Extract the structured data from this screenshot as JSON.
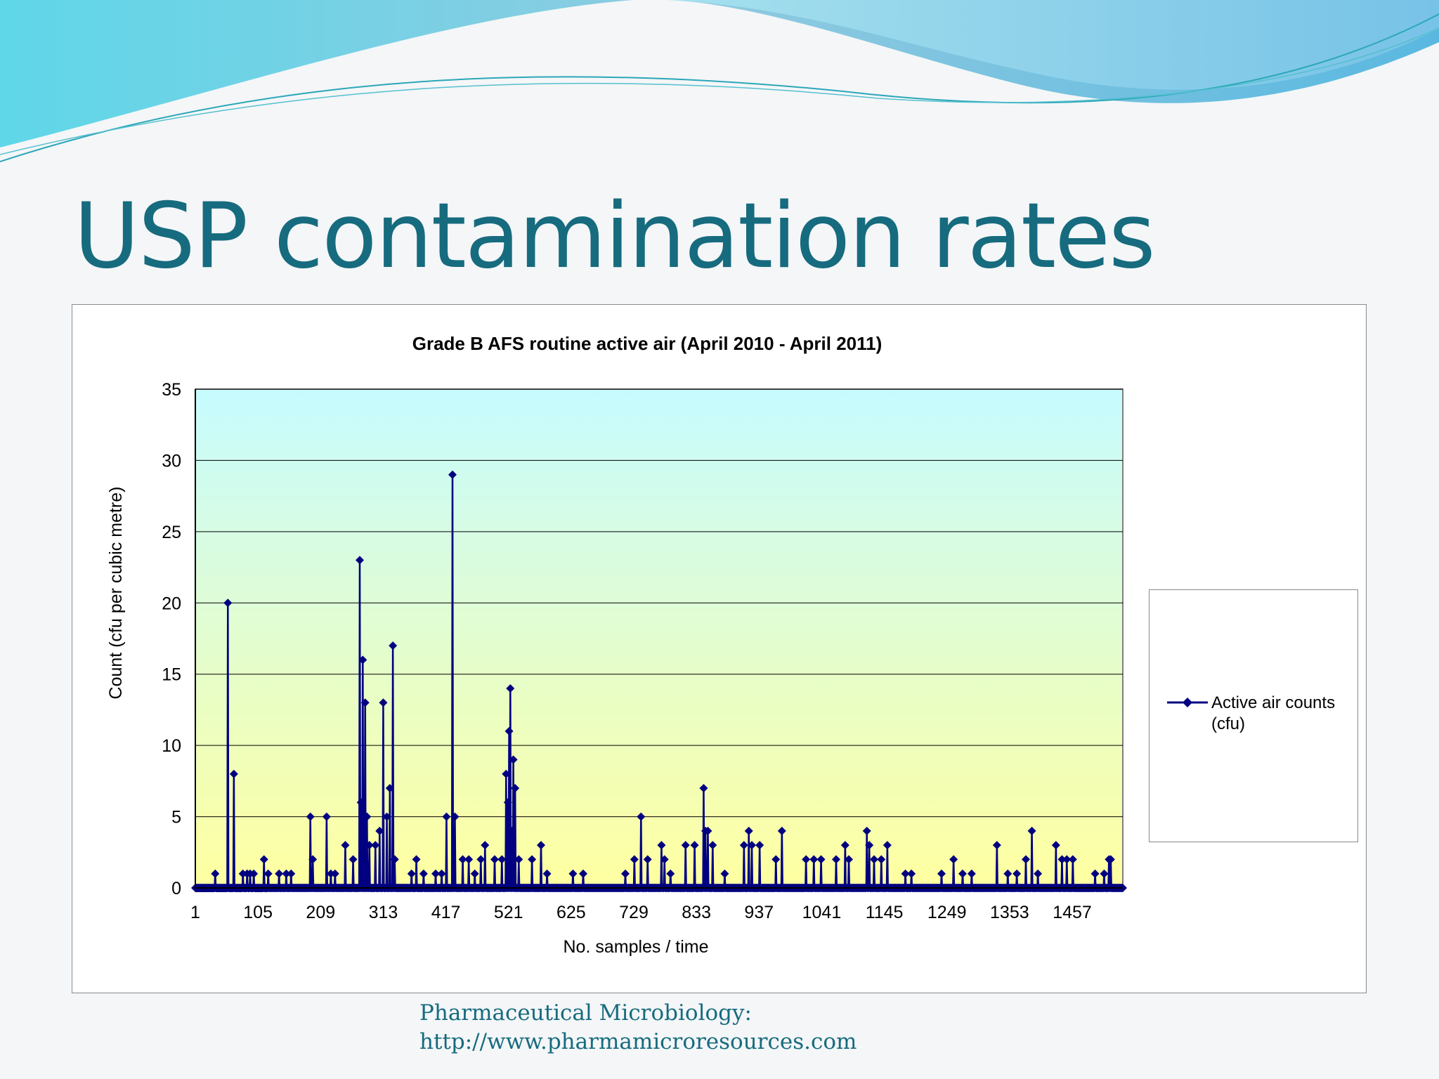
{
  "slide": {
    "title": "USP contamination rates",
    "footer_line1": "Pharmaceutical Microbiology:",
    "footer_line2": "http://www.pharmamicroresources.com"
  },
  "colors": {
    "title": "#176b7e",
    "series": "#000080",
    "plot_top": "#c6fbff",
    "plot_bottom": "#ffffa0"
  },
  "chart_data": {
    "type": "line",
    "title": "Grade B AFS routine active air (April 2010 - April 2011)",
    "xlabel": "No. samples / time",
    "ylabel": "Count (cfu per cubic metre)",
    "xlim": [
      1,
      1541
    ],
    "ylim": [
      0,
      35
    ],
    "y_ticks": [
      0,
      5,
      10,
      15,
      20,
      25,
      30,
      35
    ],
    "x_ticks": [
      1,
      105,
      209,
      313,
      417,
      521,
      625,
      729,
      833,
      937,
      1041,
      1145,
      1249,
      1353,
      1457
    ],
    "grid": true,
    "legend": "right",
    "n_samples": 1541,
    "series": [
      {
        "name": "Active air counts (cfu)",
        "marker": "diamond",
        "nonzero": [
          [
            34,
            1
          ],
          [
            55,
            20
          ],
          [
            65,
            8
          ],
          [
            80,
            1
          ],
          [
            87,
            1
          ],
          [
            92,
            1
          ],
          [
            98,
            1
          ],
          [
            115,
            2
          ],
          [
            122,
            1
          ],
          [
            140,
            1
          ],
          [
            152,
            1
          ],
          [
            160,
            1
          ],
          [
            192,
            5
          ],
          [
            196,
            2
          ],
          [
            219,
            5
          ],
          [
            226,
            1
          ],
          [
            233,
            1
          ],
          [
            250,
            3
          ],
          [
            263,
            2
          ],
          [
            274,
            23
          ],
          [
            276,
            6
          ],
          [
            279,
            16
          ],
          [
            283,
            13
          ],
          [
            286,
            5
          ],
          [
            290,
            3
          ],
          [
            300,
            3
          ],
          [
            307,
            4
          ],
          [
            313,
            13
          ],
          [
            319,
            5
          ],
          [
            324,
            7
          ],
          [
            329,
            17
          ],
          [
            332,
            2
          ],
          [
            360,
            1
          ],
          [
            368,
            2
          ],
          [
            380,
            1
          ],
          [
            400,
            1
          ],
          [
            410,
            1
          ],
          [
            418,
            5
          ],
          [
            428,
            29
          ],
          [
            432,
            5
          ],
          [
            445,
            2
          ],
          [
            455,
            2
          ],
          [
            465,
            1
          ],
          [
            475,
            2
          ],
          [
            482,
            3
          ],
          [
            498,
            2
          ],
          [
            510,
            2
          ],
          [
            517,
            8
          ],
          [
            520,
            6
          ],
          [
            522,
            11
          ],
          [
            524,
            14
          ],
          [
            527,
            4
          ],
          [
            529,
            9
          ],
          [
            532,
            7
          ],
          [
            538,
            2
          ],
          [
            560,
            2
          ],
          [
            575,
            3
          ],
          [
            585,
            1
          ],
          [
            628,
            1
          ],
          [
            645,
            1
          ],
          [
            715,
            1
          ],
          [
            730,
            2
          ],
          [
            741,
            5
          ],
          [
            752,
            2
          ],
          [
            775,
            3
          ],
          [
            780,
            2
          ],
          [
            790,
            1
          ],
          [
            815,
            3
          ],
          [
            830,
            3
          ],
          [
            845,
            7
          ],
          [
            848,
            4
          ],
          [
            852,
            4
          ],
          [
            860,
            3
          ],
          [
            880,
            1
          ],
          [
            912,
            3
          ],
          [
            920,
            4
          ],
          [
            925,
            3
          ],
          [
            938,
            3
          ],
          [
            965,
            2
          ],
          [
            975,
            4
          ],
          [
            1015,
            2
          ],
          [
            1028,
            2
          ],
          [
            1040,
            2
          ],
          [
            1065,
            2
          ],
          [
            1080,
            3
          ],
          [
            1086,
            2
          ],
          [
            1116,
            4
          ],
          [
            1120,
            3
          ],
          [
            1128,
            2
          ],
          [
            1140,
            2
          ],
          [
            1150,
            3
          ],
          [
            1180,
            1
          ],
          [
            1190,
            1
          ],
          [
            1240,
            1
          ],
          [
            1260,
            2
          ],
          [
            1275,
            1
          ],
          [
            1290,
            1
          ],
          [
            1332,
            3
          ],
          [
            1350,
            1
          ],
          [
            1365,
            1
          ],
          [
            1380,
            2
          ],
          [
            1390,
            4
          ],
          [
            1400,
            1
          ],
          [
            1430,
            3
          ],
          [
            1440,
            2
          ],
          [
            1448,
            2
          ],
          [
            1458,
            2
          ],
          [
            1495,
            1
          ],
          [
            1510,
            1
          ],
          [
            1518,
            2
          ],
          [
            1521,
            2
          ]
        ]
      }
    ]
  }
}
